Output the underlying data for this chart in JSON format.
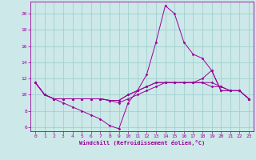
{
  "xlabel": "Windchill (Refroidissement éolien,°C)",
  "background_color": "#cce8e8",
  "grid_color": "#99cccc",
  "line_color": "#990099",
  "xlim": [
    -0.5,
    23.5
  ],
  "ylim": [
    5.5,
    21.5
  ],
  "yticks": [
    6,
    8,
    10,
    12,
    14,
    16,
    18,
    20
  ],
  "xticks": [
    0,
    1,
    2,
    3,
    4,
    5,
    6,
    7,
    8,
    9,
    10,
    11,
    12,
    13,
    14,
    15,
    16,
    17,
    18,
    19,
    20,
    21,
    22,
    23
  ],
  "series": [
    [
      11.5,
      10.0,
      9.5,
      9.0,
      8.5,
      8.0,
      7.5,
      7.0,
      6.2,
      5.8,
      9.0,
      10.5,
      12.5,
      16.5,
      21.0,
      20.0,
      16.5,
      15.0,
      14.5,
      13.0,
      10.5,
      10.5,
      10.5,
      9.5
    ],
    [
      11.5,
      10.0,
      9.5,
      9.5,
      9.5,
      9.5,
      9.5,
      9.5,
      9.3,
      9.0,
      9.5,
      10.0,
      10.5,
      11.0,
      11.5,
      11.5,
      11.5,
      11.5,
      12.0,
      13.0,
      10.5,
      10.5,
      10.5,
      9.5
    ],
    [
      11.5,
      10.0,
      9.5,
      9.5,
      9.5,
      9.5,
      9.5,
      9.5,
      9.3,
      9.3,
      10.0,
      10.5,
      11.0,
      11.5,
      11.5,
      11.5,
      11.5,
      11.5,
      11.5,
      11.5,
      11.0,
      10.5,
      10.5,
      9.5
    ],
    [
      11.5,
      10.0,
      9.5,
      9.5,
      9.5,
      9.5,
      9.5,
      9.5,
      9.3,
      9.3,
      10.0,
      10.5,
      11.0,
      11.5,
      11.5,
      11.5,
      11.5,
      11.5,
      11.5,
      11.0,
      11.0,
      10.5,
      10.5,
      9.5
    ]
  ]
}
